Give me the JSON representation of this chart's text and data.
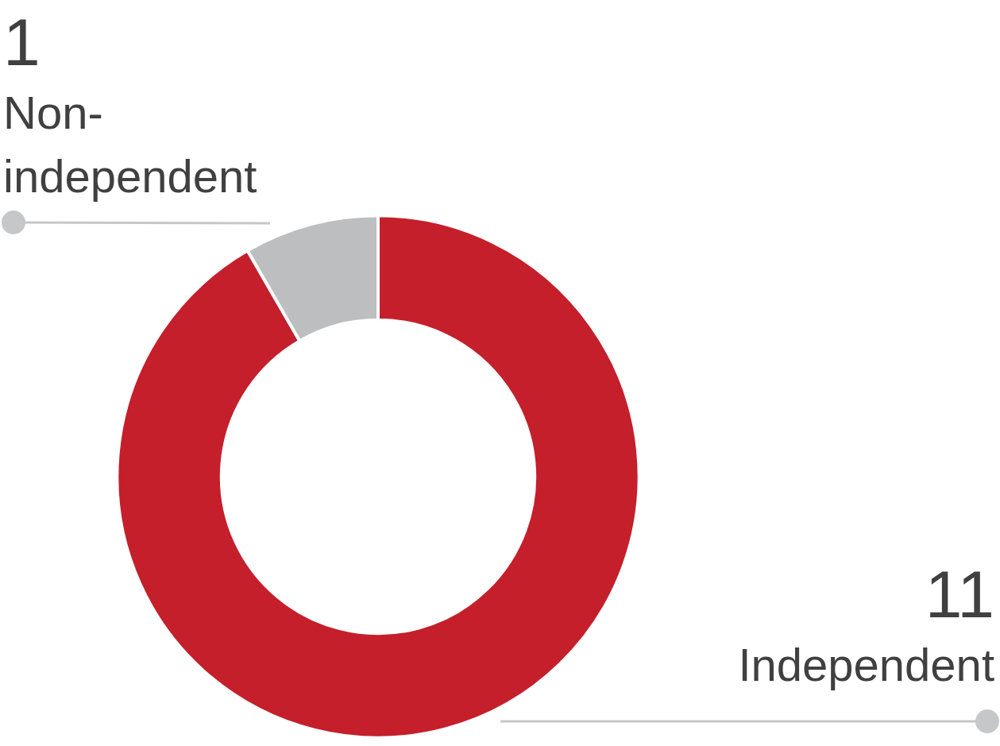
{
  "chart_data": {
    "type": "donut",
    "categories": [
      "Independent",
      "Non-independent"
    ],
    "values": [
      11,
      1
    ],
    "colors": [
      "#c41f2b",
      "#bdbec0"
    ],
    "data_labels": true,
    "legend": false
  }
}
